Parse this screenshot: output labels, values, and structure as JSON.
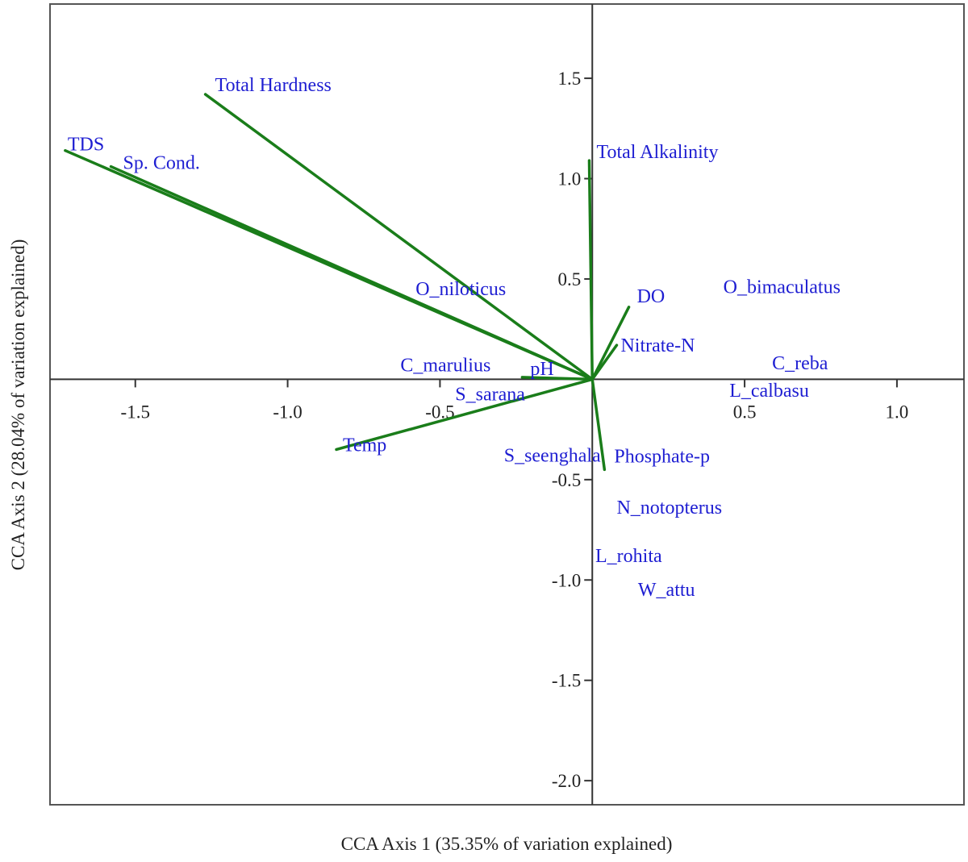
{
  "chart_data": {
    "type": "scatter",
    "subtype": "CCA biplot",
    "xlabel": "CCA Axis 1 (35.35% of variation explained)",
    "ylabel": "CCA Axis 2 (28.04% of variation explained)",
    "xlim": [
      -1.78,
      1.22
    ],
    "ylim": [
      -2.12,
      1.87
    ],
    "xticks": [
      -1.5,
      -1.0,
      -0.5,
      0.5,
      1.0
    ],
    "xtick_labels": [
      "-1.5",
      "-1.0",
      "-0.5",
      "0.5",
      "1.0"
    ],
    "yticks": [
      1.5,
      1.0,
      0.5,
      -0.5,
      -1.0,
      -1.5,
      -2.0
    ],
    "ytick_labels": [
      "1.5",
      "1.0",
      "0.5",
      "-0.5",
      "-1.0",
      "-1.5",
      "-2.0"
    ],
    "grid": false,
    "colors": {
      "arrow": "#1a7d1a",
      "label": "#1e1ed2",
      "axis": "#333333"
    },
    "environmental_vectors": [
      {
        "name": "Total Hardness",
        "x": -1.27,
        "y": 1.42
      },
      {
        "name": "TDS",
        "x": -1.73,
        "y": 1.14
      },
      {
        "name": "Sp. Cond.",
        "x": -1.58,
        "y": 1.06
      },
      {
        "name": "Total Alkalinity",
        "x": -0.01,
        "y": 1.09
      },
      {
        "name": "DO",
        "x": 0.12,
        "y": 0.36
      },
      {
        "name": "Nitrate-N",
        "x": 0.08,
        "y": 0.17
      },
      {
        "name": "pH",
        "x": -0.23,
        "y": 0.01
      },
      {
        "name": "Temp",
        "x": -0.84,
        "y": -0.35
      },
      {
        "name": "Phosphate-p",
        "x": 0.04,
        "y": -0.45
      }
    ],
    "species": [
      {
        "name": "O_niloticus",
        "x": -0.58,
        "y": 0.42
      },
      {
        "name": "O_bimaculatus",
        "x": 0.43,
        "y": 0.43
      },
      {
        "name": "C_reba",
        "x": 0.59,
        "y": 0.05
      },
      {
        "name": "L_calbasu",
        "x": 0.45,
        "y": -0.11
      },
      {
        "name": "C_marulius",
        "x": -0.63,
        "y": 0.02
      },
      {
        "name": "S_sarana",
        "x": -0.45,
        "y": -0.08
      },
      {
        "name": "S_seenghala",
        "x": -0.29,
        "y": -0.41
      },
      {
        "name": "N_notopterus",
        "x": 0.08,
        "y": -0.67
      },
      {
        "name": "L_rohita",
        "x": 0.01,
        "y": -0.91
      },
      {
        "name": "W_attu",
        "x": 0.15,
        "y": -1.08
      }
    ]
  }
}
